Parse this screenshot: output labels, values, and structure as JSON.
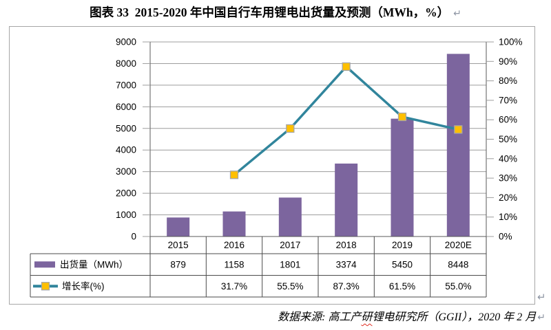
{
  "title": {
    "text": "图表 33  2015-2020 年中国自行车用锂电出货量及预测（MWh，%）"
  },
  "marks": {
    "paragraph_mark": "↵"
  },
  "source": {
    "part1": "数据来源: 高工产",
    "underlined_char": "研",
    "part2": "锂电研究所（GGII），2020 年 2 月"
  },
  "chart_data": {
    "type": "bar+line combo with data table",
    "categories": [
      "2015",
      "2016",
      "2017",
      "2018",
      "2019",
      "2020E"
    ],
    "series": [
      {
        "name": "出货量（MWh）",
        "chart_type": "bar",
        "axis": "left",
        "color": "#7C659E",
        "values": [
          879,
          1158,
          1801,
          3374,
          5450,
          8448
        ],
        "table_values": [
          "879",
          "1158",
          "1801",
          "3374",
          "5450",
          "8448"
        ]
      },
      {
        "name": "增长率(%)",
        "chart_type": "line",
        "axis": "right",
        "line_color": "#31859C",
        "marker_color": "#FFC000",
        "marker_border": "#A6A6A6",
        "values": [
          null,
          31.7,
          55.5,
          87.3,
          61.5,
          55.0
        ],
        "table_values": [
          "",
          "31.7%",
          "55.5%",
          "87.3%",
          "61.5%",
          "55.0%"
        ]
      }
    ],
    "left_axis": {
      "min": 0,
      "max": 9000,
      "step": 1000,
      "tick_labels": [
        "0",
        "1000",
        "2000",
        "3000",
        "4000",
        "5000",
        "6000",
        "7000",
        "8000",
        "9000"
      ]
    },
    "right_axis": {
      "min": 0,
      "max": 100,
      "step": 10,
      "tick_labels": [
        "0%",
        "10%",
        "20%",
        "30%",
        "40%",
        "50%",
        "60%",
        "70%",
        "80%",
        "90%",
        "100%"
      ]
    },
    "grid": true,
    "legend_position": "data-table-left",
    "colors": {
      "gridline": "#9C9C9C",
      "axis_line": "#595959",
      "table_border": "#4a4a4a",
      "text": "#000000"
    }
  }
}
